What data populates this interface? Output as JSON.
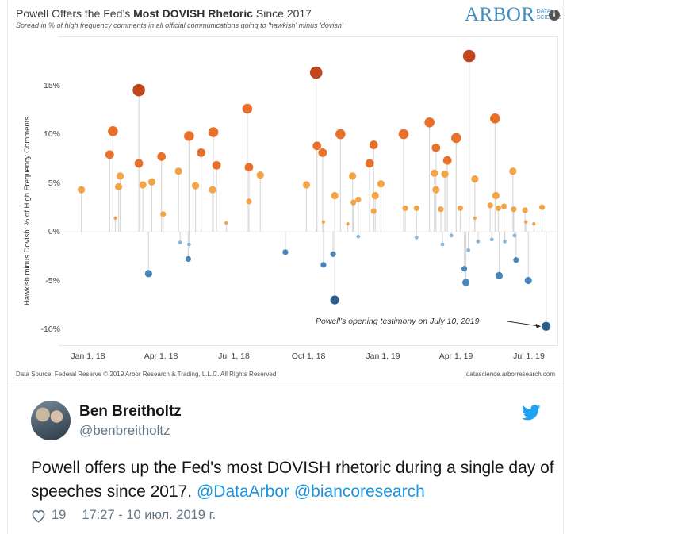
{
  "chart": {
    "title_part1": "Powell Offers the Fed’s ",
    "title_bold": "Most DOVISH Rhetoric",
    "title_part2": " Since 2017",
    "subtitle": "Spread in % of high frequency comments in all official communications going to 'hawkish' minus 'dovish'",
    "logo_word": "ARBOR",
    "logo_small_1": "DATA",
    "logo_small_2": "SCIENCE",
    "logo_badge": "i",
    "source_left": "Data Source: Federal Reserve © 2019 Arbor Research & Trading, L.L.C. All Rights Reserved",
    "source_right": "datascience.arborresearch.com",
    "annotation": "Powell’s opening testimony on July 10, 2019"
  },
  "chart_data": {
    "type": "scatter",
    "title": "Powell Offers the Fed’s Most DOVISH Rhetoric Since 2017",
    "subtitle": "Spread in % of high frequency comments in all official communications going to 'hawkish' minus 'dovish'",
    "xlabel": "",
    "ylabel": "Hawkish minus Dovish: % of High Frequency Comments",
    "x_ticks": [
      "Jan 1, 18",
      "Apr 1, 18",
      "Jul 1, 18",
      "Oct 1, 18",
      "Jan 1, 19",
      "Apr 1, 19",
      "Jul 1, 19"
    ],
    "y_ticks": [
      "15%",
      "10%",
      "5%",
      "0%",
      "-5%",
      "-10%"
    ],
    "ylim": [
      -11.5,
      20
    ],
    "xlim": [
      "2017-11-15",
      "2019-07-25"
    ],
    "grid": false,
    "stem": true,
    "color_scale": {
      "strong_hawk": "#c0461c",
      "hawk": "#e8702a",
      "mild_hawk": "#f2a447",
      "mild_dove": "#8ab8da",
      "dove": "#4a86bc",
      "strong_dove": "#2c5f8c"
    },
    "points": [
      {
        "x": "2017-12-13",
        "y": 4.3
      },
      {
        "x": "2018-01-17",
        "y": 7.9
      },
      {
        "x": "2018-01-21",
        "y": 10.3
      },
      {
        "x": "2018-01-24",
        "y": 1.4
      },
      {
        "x": "2018-01-28",
        "y": 4.6
      },
      {
        "x": "2018-01-30",
        "y": 5.7
      },
      {
        "x": "2018-02-22",
        "y": 7.0
      },
      {
        "x": "2018-02-22",
        "y": 14.5
      },
      {
        "x": "2018-02-27",
        "y": 4.8
      },
      {
        "x": "2018-03-06",
        "y": -4.3
      },
      {
        "x": "2018-03-10",
        "y": 5.1
      },
      {
        "x": "2018-03-22",
        "y": 7.7
      },
      {
        "x": "2018-03-24",
        "y": 1.8
      },
      {
        "x": "2018-04-12",
        "y": 6.2
      },
      {
        "x": "2018-04-14",
        "y": -1.1
      },
      {
        "x": "2018-04-24",
        "y": -2.8
      },
      {
        "x": "2018-04-25",
        "y": 9.8
      },
      {
        "x": "2018-04-25",
        "y": -1.3
      },
      {
        "x": "2018-05-03",
        "y": 4.7
      },
      {
        "x": "2018-05-10",
        "y": 8.1
      },
      {
        "x": "2018-05-24",
        "y": 4.3
      },
      {
        "x": "2018-05-25",
        "y": 10.2
      },
      {
        "x": "2018-05-29",
        "y": 6.8
      },
      {
        "x": "2018-06-10",
        "y": 0.9
      },
      {
        "x": "2018-07-06",
        "y": 12.6
      },
      {
        "x": "2018-07-08",
        "y": 6.6
      },
      {
        "x": "2018-07-08",
        "y": 3.1
      },
      {
        "x": "2018-07-22",
        "y": 5.8
      },
      {
        "x": "2018-08-22",
        "y": -2.1
      },
      {
        "x": "2018-09-17",
        "y": 4.8
      },
      {
        "x": "2018-09-29",
        "y": 16.3
      },
      {
        "x": "2018-09-30",
        "y": 8.8
      },
      {
        "x": "2018-10-07",
        "y": 8.1
      },
      {
        "x": "2018-10-08",
        "y": 1.0
      },
      {
        "x": "2018-10-08",
        "y": -3.4
      },
      {
        "x": "2018-10-20",
        "y": -2.3
      },
      {
        "x": "2018-10-22",
        "y": 3.7
      },
      {
        "x": "2018-10-22",
        "y": -7.0
      },
      {
        "x": "2018-10-29",
        "y": 10.0
      },
      {
        "x": "2018-11-07",
        "y": 0.8
      },
      {
        "x": "2018-11-13",
        "y": 5.7
      },
      {
        "x": "2018-11-14",
        "y": 3.0
      },
      {
        "x": "2018-11-20",
        "y": 3.3
      },
      {
        "x": "2018-11-20",
        "y": -0.5
      },
      {
        "x": "2018-12-04",
        "y": 7.0
      },
      {
        "x": "2018-12-09",
        "y": 8.9
      },
      {
        "x": "2018-12-09",
        "y": 2.1
      },
      {
        "x": "2018-12-11",
        "y": 3.7
      },
      {
        "x": "2018-12-18",
        "y": 4.9
      },
      {
        "x": "2019-01-15",
        "y": 10.0
      },
      {
        "x": "2019-01-17",
        "y": 2.4
      },
      {
        "x": "2019-01-31",
        "y": 2.4
      },
      {
        "x": "2019-01-31",
        "y": -0.6
      },
      {
        "x": "2019-02-16",
        "y": 11.2
      },
      {
        "x": "2019-02-22",
        "y": 6.0
      },
      {
        "x": "2019-02-24",
        "y": 8.6
      },
      {
        "x": "2019-02-24",
        "y": 4.3
      },
      {
        "x": "2019-03-02",
        "y": 2.3
      },
      {
        "x": "2019-03-04",
        "y": -1.3
      },
      {
        "x": "2019-03-07",
        "y": 5.9
      },
      {
        "x": "2019-03-10",
        "y": 7.3
      },
      {
        "x": "2019-03-15",
        "y": -0.4
      },
      {
        "x": "2019-03-21",
        "y": 9.6
      },
      {
        "x": "2019-03-26",
        "y": 2.4
      },
      {
        "x": "2019-03-31",
        "y": -3.8
      },
      {
        "x": "2019-04-02",
        "y": -5.2
      },
      {
        "x": "2019-04-05",
        "y": -1.9
      },
      {
        "x": "2019-04-06",
        "y": 18.0
      },
      {
        "x": "2019-04-13",
        "y": 5.4
      },
      {
        "x": "2019-04-13",
        "y": 1.4
      },
      {
        "x": "2019-04-17",
        "y": -1.0
      },
      {
        "x": "2019-05-02",
        "y": 2.7
      },
      {
        "x": "2019-05-04",
        "y": -0.8
      },
      {
        "x": "2019-05-08",
        "y": 11.6
      },
      {
        "x": "2019-05-09",
        "y": 3.7
      },
      {
        "x": "2019-05-12",
        "y": 2.4
      },
      {
        "x": "2019-05-13",
        "y": -4.5
      },
      {
        "x": "2019-05-19",
        "y": 2.6
      },
      {
        "x": "2019-05-20",
        "y": -1.0
      },
      {
        "x": "2019-05-30",
        "y": 6.2
      },
      {
        "x": "2019-05-31",
        "y": 2.3
      },
      {
        "x": "2019-06-01",
        "y": -0.4
      },
      {
        "x": "2019-06-03",
        "y": -2.9
      },
      {
        "x": "2019-06-14",
        "y": 2.2
      },
      {
        "x": "2019-06-15",
        "y": 1.0
      },
      {
        "x": "2019-06-18",
        "y": -5.0
      },
      {
        "x": "2019-06-25",
        "y": 0.8
      },
      {
        "x": "2019-07-05",
        "y": 2.5
      },
      {
        "x": "2019-07-10",
        "y": -9.7
      }
    ]
  },
  "tweet": {
    "author_name": "Ben Breitholtz",
    "author_handle": "@benbreitholtz",
    "text_plain": "Powell offers up the Fed's most DOVISH rhetoric during a single day of speeches since 2017. ",
    "mention_1": "@DataArbor",
    "mention_2": "@biancoresearch",
    "like_count": "19",
    "timestamp": "17:27 - 10 июл. 2019 г."
  },
  "icons": {
    "bird": "twitter-bird-icon",
    "heart": "heart-icon",
    "brand_color": "#1da1f2"
  }
}
